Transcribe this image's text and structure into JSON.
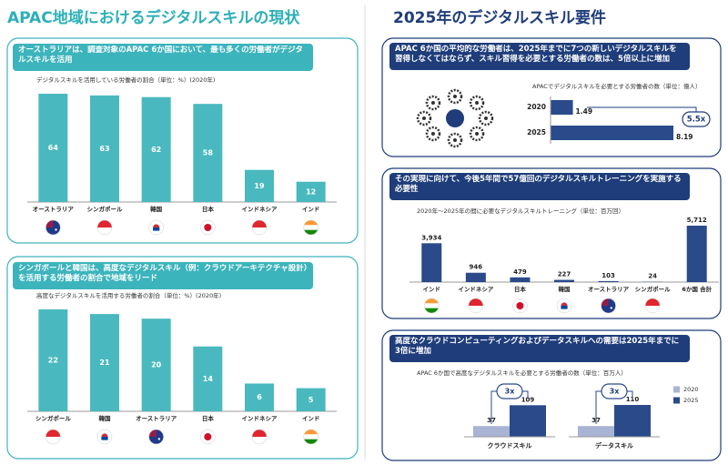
{
  "titles": {
    "left": "APAC地域におけるデジタルスキルの現状",
    "right": "2025年のデジタルスキル要件"
  },
  "chart_data": [
    {
      "type": "bar",
      "title": "オーストラリアは、調査対象のAPAC 6か国において、最も多くの労働者がデジタルスキルを活用",
      "subtitle": "デジタルスキルを活用している労働者の割合（単位：%）(2020年)",
      "categories": [
        "オーストラリア",
        "シンガポール",
        "韓国",
        "日本",
        "インドネシア",
        "インド"
      ],
      "values": [
        64,
        63,
        62,
        58,
        19,
        12
      ],
      "color": "#4ab9bf"
    },
    {
      "type": "bar",
      "title": "シンガポールと韓国は、高度なデジタルスキル（例：クラウドアーキテクチャ設計）を活用する労働者の割合で地域をリード",
      "subtitle": "高度なデジタルスキルを活用する労働者の割合（単位：%）(2020年)",
      "categories": [
        "シンガポール",
        "韓国",
        "オーストラリア",
        "日本",
        "インドネシア",
        "インド"
      ],
      "values": [
        22,
        21,
        20,
        14,
        6,
        5
      ],
      "color": "#4ab9bf"
    },
    {
      "type": "bar",
      "orientation": "horizontal",
      "title": "APAC 6か国の平均的な労働者は、2025年までに7つの新しいデジタルスキルを習得しなくてはならず、スキル習得を必要とする労働者の数は、5倍以上に増加",
      "subtitle": "APACでデジタルスキルを必要とする労働者の数（単位：億人）",
      "categories": [
        "2020",
        "2025"
      ],
      "values": [
        1.49,
        8.19
      ],
      "color": "#2a4a8a",
      "annotation": "5.5x"
    },
    {
      "type": "bar",
      "title": "その実現に向けて、今後5年間で57億回のデジタルスキルトレーニングを実施する必要性",
      "subtitle": "2020年～2025年の間に必要なデジタルスキルトレーニング（単位：百万回）",
      "categories": [
        "インド",
        "インドネシア",
        "日本",
        "韓国",
        "オーストラリア",
        "シンガポール",
        "6か国 合計"
      ],
      "values": [
        3934,
        946,
        479,
        227,
        103,
        24,
        5712
      ],
      "value_labels": [
        "3,934",
        "946",
        "479",
        "227",
        "103",
        "24",
        "5,712"
      ],
      "color": "#2a4a8a"
    },
    {
      "type": "bar",
      "title": "高度なクラウドコンピューティングおよびデータスキルへの需要は2025年までに3倍に増加",
      "subtitle": "APAC 6か国で高度なデジタルスキルを必要とする労働者の数（単位：百万人）",
      "categories": [
        "クラウドスキル",
        "データスキル"
      ],
      "series": [
        {
          "name": "2020",
          "color": "#a9b4d4",
          "values": [
            37,
            37
          ]
        },
        {
          "name": "2025",
          "color": "#2a4a8a",
          "values": [
            109,
            110
          ]
        }
      ],
      "annotations": [
        "3x",
        "3x"
      ]
    }
  ]
}
